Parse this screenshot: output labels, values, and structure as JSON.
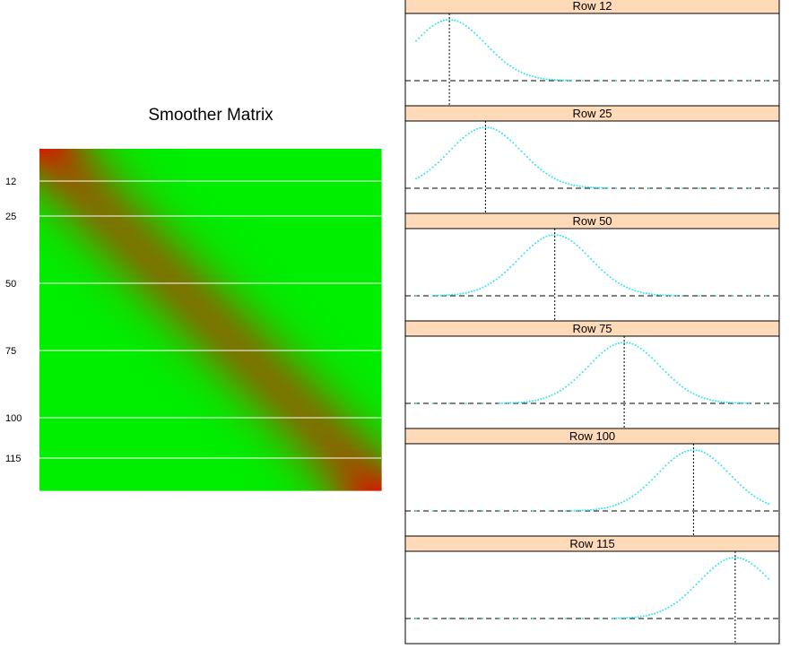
{
  "chart_data": [
    {
      "type": "heatmap",
      "title": "Smoother Matrix",
      "size": 128,
      "bandwidth": 13,
      "color_low": "#00ee00",
      "color_high": "#cc2200",
      "highlighted_rows": [
        12,
        25,
        50,
        75,
        100,
        115
      ],
      "row_tick_labels": [
        "12",
        "25",
        "50",
        "75",
        "100",
        "115"
      ],
      "row_line_color": "#ffffff"
    },
    {
      "type": "scatter",
      "layout": "stacked panels",
      "point_color": "#33e6ec",
      "strip_color": "#ffdab9",
      "reference_line": "dashed horizontal at 0; dotted vertical at row index",
      "panels": [
        {
          "label": "Row 12",
          "row": 12
        },
        {
          "label": "Row 25",
          "row": 25
        },
        {
          "label": "Row 50",
          "row": 50
        },
        {
          "label": "Row 75",
          "row": 75
        },
        {
          "label": "Row 100",
          "row": 100
        },
        {
          "label": "Row 115",
          "row": 115
        }
      ]
    }
  ]
}
